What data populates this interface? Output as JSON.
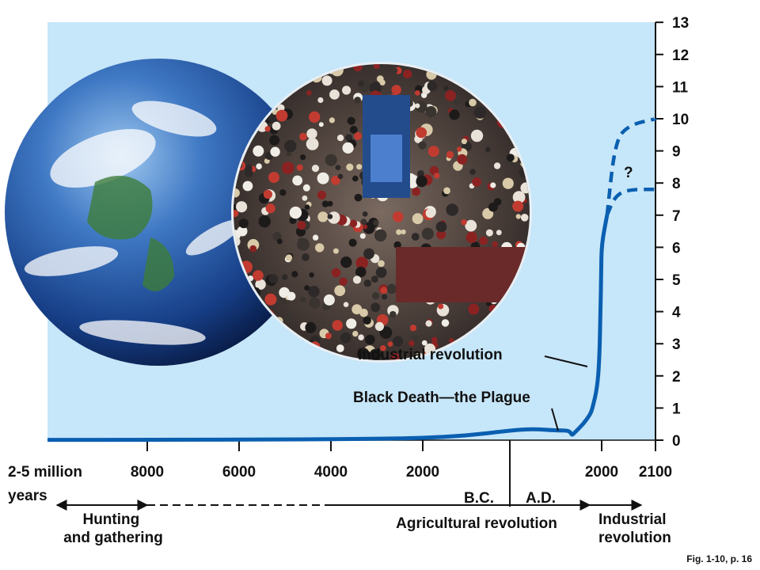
{
  "colors": {
    "panel": "#c6e6f9",
    "curve": "#0a5fb0",
    "arrow": "#111111"
  },
  "chart_data": {
    "type": "line",
    "title": "",
    "xlabel": "",
    "ylabel": "",
    "ylim": [
      0,
      13
    ],
    "y_ticks": [
      "0",
      "1",
      "2",
      "3",
      "4",
      "5",
      "6",
      "7",
      "8",
      "9",
      "10",
      "11",
      "12",
      "13"
    ],
    "x_ticks": [
      {
        "label": "8000",
        "year": -8000
      },
      {
        "label": "6000",
        "year": -6000
      },
      {
        "label": "4000",
        "year": -4000
      },
      {
        "label": "2000",
        "year": -2000
      },
      {
        "label": "2000",
        "year": 2000
      },
      {
        "label": "2100",
        "year": 2100
      }
    ],
    "x_start_label": "2-5 million years",
    "era_labels": {
      "bc": "B.C.",
      "ad": "A.D."
    },
    "series": [
      {
        "style": "solid",
        "points": [
          {
            "year": -10000,
            "value": 0.01
          },
          {
            "year": -8000,
            "value": 0.01
          },
          {
            "year": -5000,
            "value": 0.02
          },
          {
            "year": -3000,
            "value": 0.04
          },
          {
            "year": -2000,
            "value": 0.07
          },
          {
            "year": -1000,
            "value": 0.14
          },
          {
            "year": 0,
            "value": 0.3
          },
          {
            "year": 500,
            "value": 0.35
          },
          {
            "year": 1000,
            "value": 0.3
          },
          {
            "year": 1300,
            "value": 0.3
          },
          {
            "year": 1350,
            "value": 0.15
          },
          {
            "year": 1400,
            "value": 0.22
          },
          {
            "year": 1600,
            "value": 0.5
          },
          {
            "year": 1750,
            "value": 0.8
          },
          {
            "year": 1800,
            "value": 1.0
          },
          {
            "year": 1900,
            "value": 1.6
          },
          {
            "year": 1950,
            "value": 2.5
          },
          {
            "year": 1975,
            "value": 4.0
          },
          {
            "year": 1990,
            "value": 5.3
          },
          {
            "year": 2000,
            "value": 6.1
          },
          {
            "year": 2010,
            "value": 7.0
          }
        ]
      },
      {
        "style": "dashed",
        "points": [
          {
            "year": 2010,
            "value": 7.0
          },
          {
            "year": 2025,
            "value": 9.3
          },
          {
            "year": 2050,
            "value": 9.8
          },
          {
            "year": 2100,
            "value": 10.0
          }
        ]
      },
      {
        "style": "dashed",
        "points": [
          {
            "year": 2010,
            "value": 7.0
          },
          {
            "year": 2025,
            "value": 7.6
          },
          {
            "year": 2050,
            "value": 7.8
          },
          {
            "year": 2100,
            "value": 7.8
          }
        ]
      }
    ],
    "annotations": {
      "industrial": "Industrial revolution",
      "plague": "Black Death—the Plague",
      "question": "?"
    },
    "timeline": {
      "hunting": [
        "Hunting",
        "and gathering"
      ],
      "agricultural": "Agricultural revolution",
      "industrial": [
        "Industrial",
        "revolution"
      ]
    },
    "caption": "Fig. 1-10, p. 16"
  }
}
